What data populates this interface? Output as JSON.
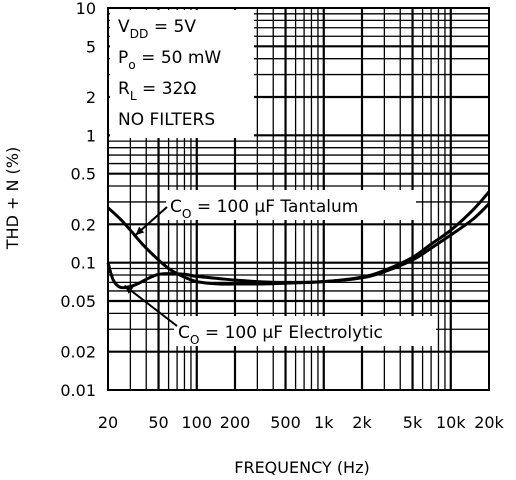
{
  "chart_data": {
    "type": "line",
    "title": "",
    "xlabel": "FREQUENCY (Hz)",
    "ylabel": "THD + N (%)",
    "xscale": "log",
    "yscale": "log",
    "xlim": [
      20,
      20000
    ],
    "ylim": [
      0.01,
      10
    ],
    "grid": true,
    "x_ticks": [
      {
        "value": 20,
        "label": "20"
      },
      {
        "value": 50,
        "label": "50"
      },
      {
        "value": 100,
        "label": "100"
      },
      {
        "value": 200,
        "label": "200"
      },
      {
        "value": 500,
        "label": "500"
      },
      {
        "value": 1000,
        "label": "1k"
      },
      {
        "value": 2000,
        "label": "2k"
      },
      {
        "value": 5000,
        "label": "5k"
      },
      {
        "value": 10000,
        "label": "10k"
      },
      {
        "value": 20000,
        "label": "20k"
      }
    ],
    "y_ticks": [
      {
        "value": 0.01,
        "label": "0.01"
      },
      {
        "value": 0.02,
        "label": "0.02"
      },
      {
        "value": 0.05,
        "label": "0.05"
      },
      {
        "value": 0.1,
        "label": "0.1"
      },
      {
        "value": 0.2,
        "label": "0.2"
      },
      {
        "value": 0.5,
        "label": "0.5"
      },
      {
        "value": 1,
        "label": "1"
      },
      {
        "value": 2,
        "label": "2"
      },
      {
        "value": 5,
        "label": "5"
      },
      {
        "value": 10,
        "label": "10"
      }
    ],
    "conditions": [
      {
        "base": "V",
        "sub": "DD",
        "rest": " = 5V"
      },
      {
        "base": "P",
        "sub": "o",
        "rest": " = 50 mW"
      },
      {
        "base": "R",
        "sub": "L",
        "rest": " = 32Ω"
      },
      {
        "base": "NO FILTERS",
        "sub": "",
        "rest": ""
      }
    ],
    "series": [
      {
        "name": "C O = 100 µF Tantalum",
        "annotation": {
          "base": "C",
          "sub": "O",
          "rest": " = 100 μF Tantalum"
        },
        "x": [
          20,
          25,
          30,
          35,
          40,
          50,
          60,
          70,
          80,
          100,
          150,
          200,
          300,
          500,
          1000,
          2000,
          3000,
          5000,
          7000,
          10000,
          15000,
          20000
        ],
        "y": [
          0.27,
          0.22,
          0.18,
          0.15,
          0.13,
          0.105,
          0.09,
          0.082,
          0.077,
          0.071,
          0.068,
          0.068,
          0.068,
          0.069,
          0.071,
          0.077,
          0.087,
          0.11,
          0.14,
          0.18,
          0.26,
          0.36
        ]
      },
      {
        "name": "C O = 100 µF Electrolytic",
        "annotation": {
          "base": "C",
          "sub": "O",
          "rest": " = 100 μF Electrolytic"
        },
        "x": [
          20,
          22,
          25,
          30,
          35,
          40,
          45,
          50,
          60,
          80,
          100,
          150,
          200,
          300,
          500,
          1000,
          2000,
          3000,
          5000,
          7000,
          10000,
          15000,
          20000
        ],
        "y": [
          0.1,
          0.073,
          0.064,
          0.065,
          0.069,
          0.074,
          0.078,
          0.081,
          0.082,
          0.081,
          0.078,
          0.075,
          0.073,
          0.071,
          0.07,
          0.071,
          0.076,
          0.085,
          0.105,
          0.13,
          0.165,
          0.22,
          0.29
        ]
      }
    ]
  }
}
